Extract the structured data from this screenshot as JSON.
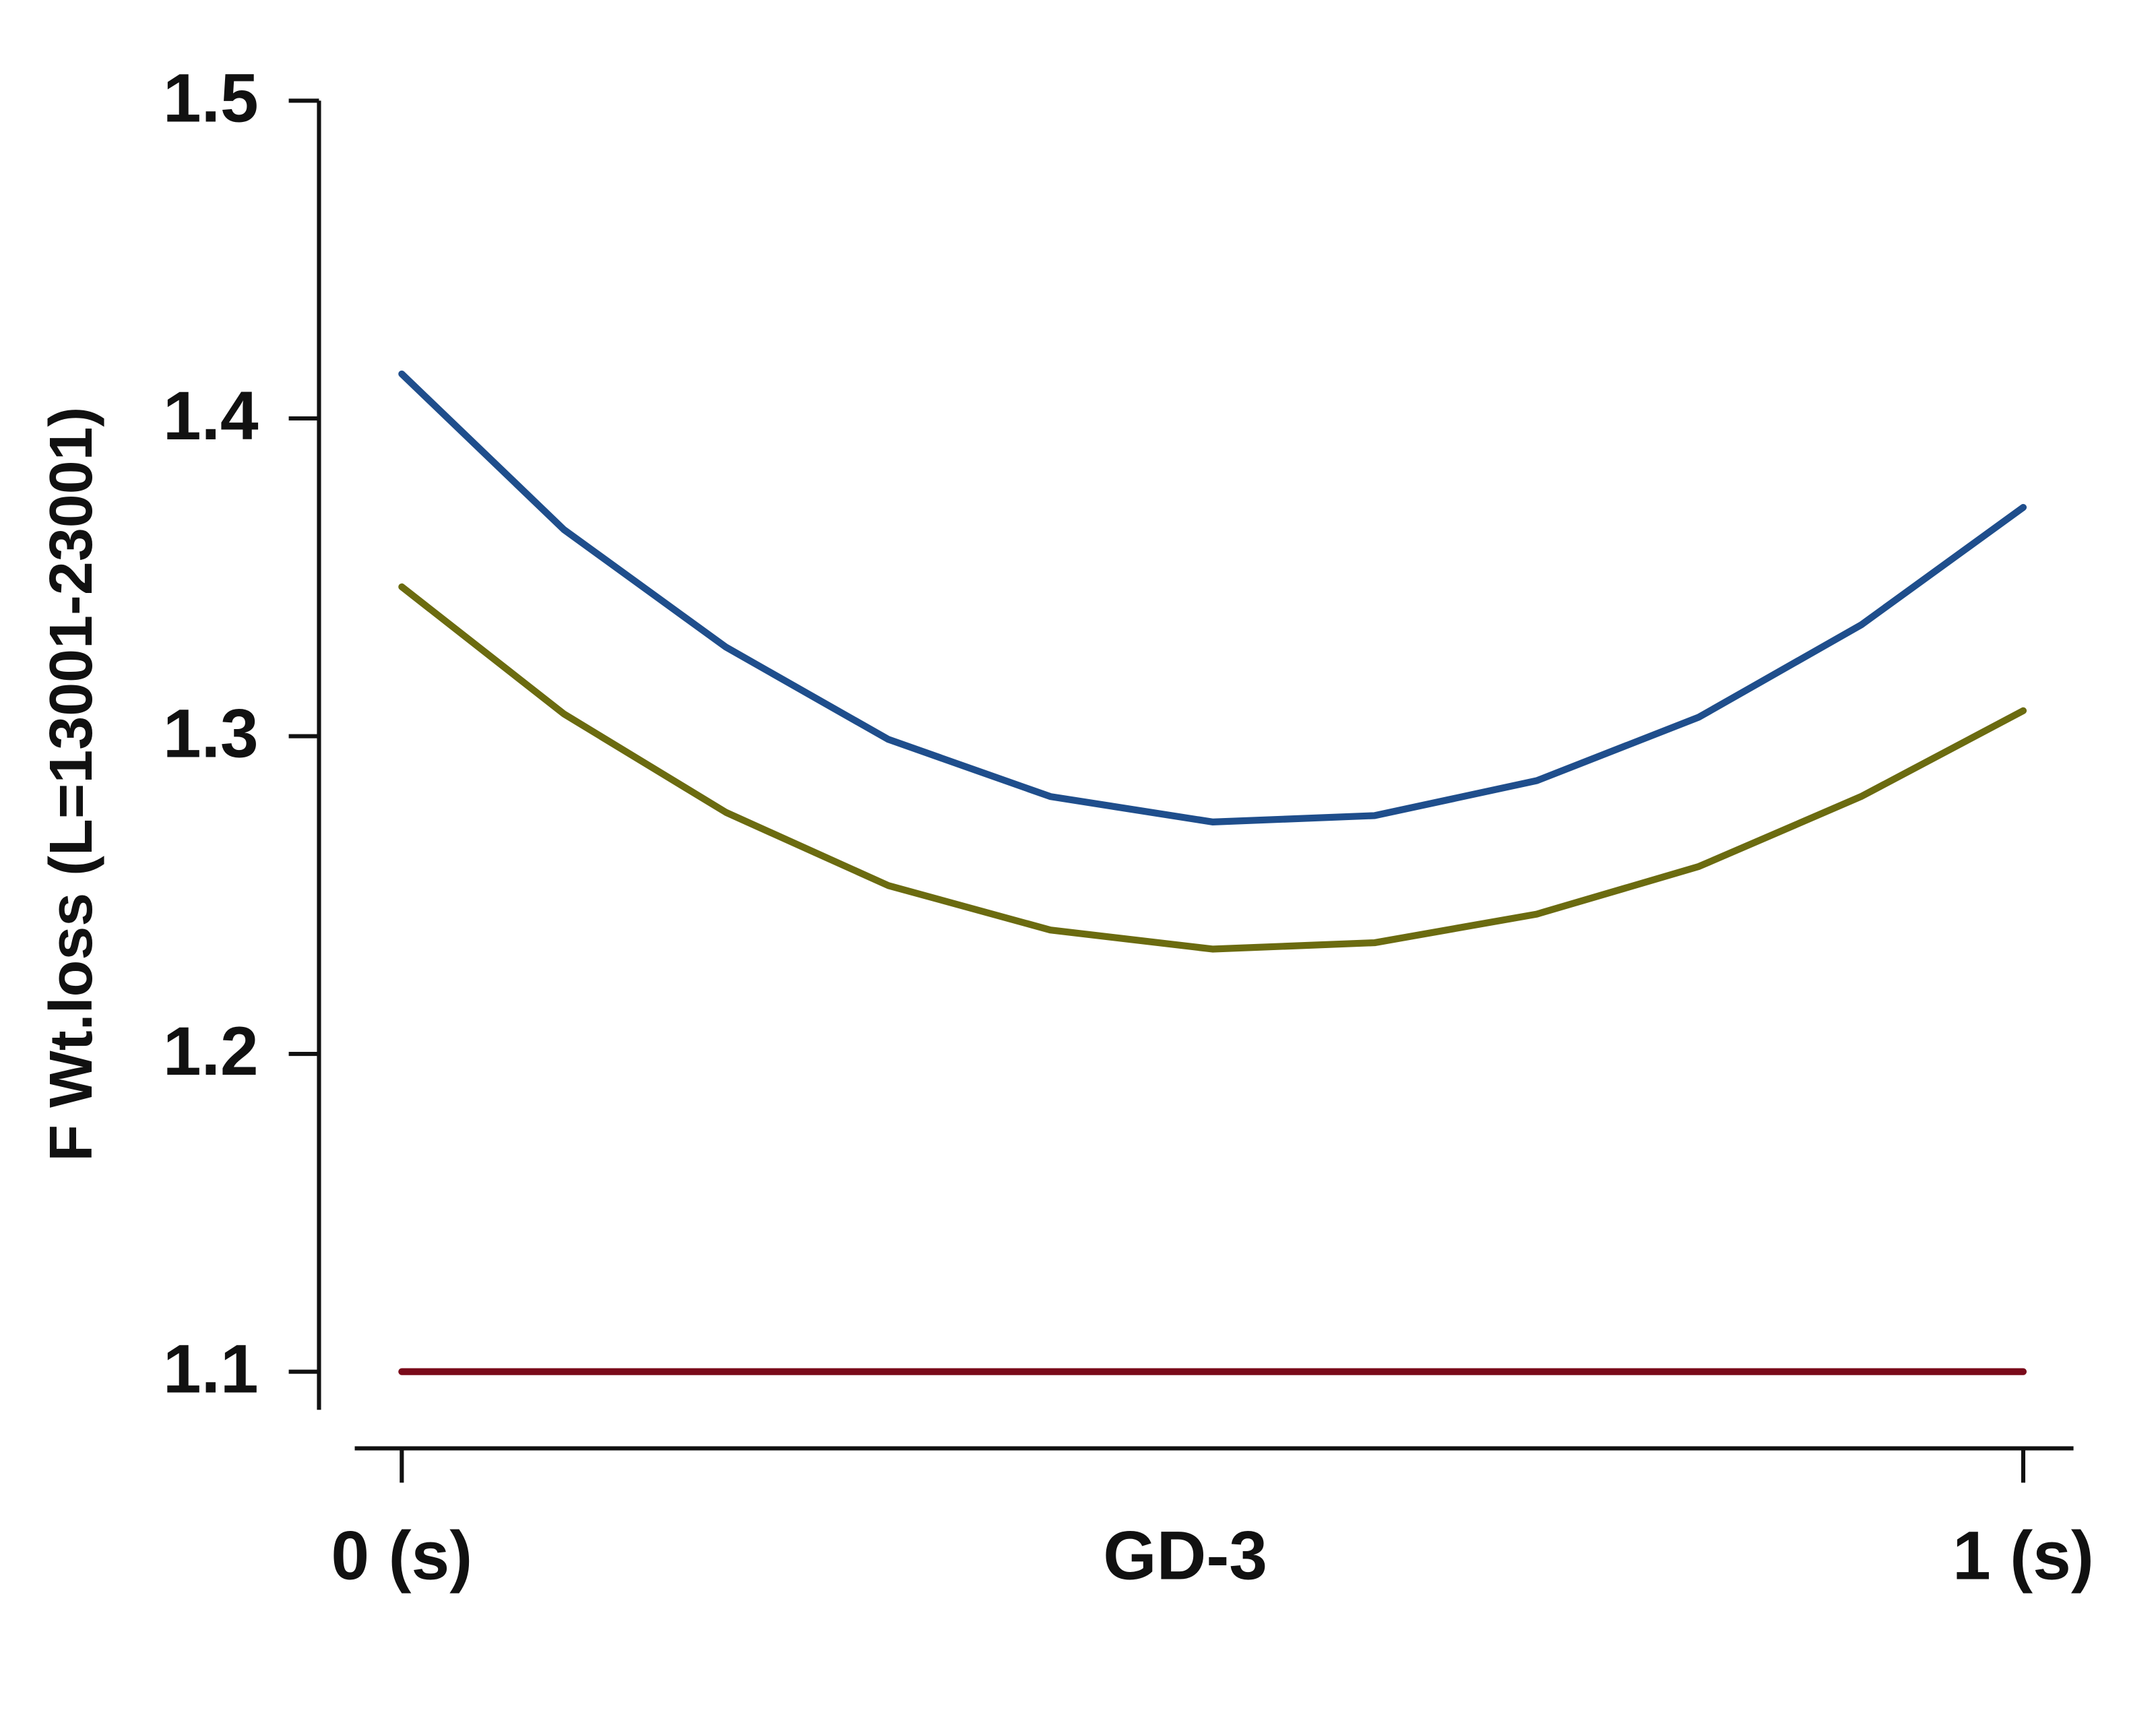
{
  "chart_data": {
    "type": "line",
    "x_label": "GD-3",
    "y_label": "F Wt.loss (L=13001-23001)",
    "x": [
      0,
      0.1,
      0.2,
      0.3,
      0.4,
      0.5,
      0.6,
      0.7,
      0.8,
      0.9,
      1
    ],
    "series": [
      {
        "color": "#1f4e8c",
        "values": [
          1.414,
          1.365,
          1.328,
          1.299,
          1.281,
          1.273,
          1.275,
          1.286,
          1.306,
          1.335,
          1.372
        ]
      },
      {
        "color": "#6b6b10",
        "values": [
          1.347,
          1.307,
          1.276,
          1.253,
          1.239,
          1.233,
          1.235,
          1.244,
          1.259,
          1.281,
          1.308
        ]
      },
      {
        "color": "#7a0a1a",
        "values": [
          1.1,
          1.1,
          1.1,
          1.1,
          1.1,
          1.1,
          1.1,
          1.1,
          1.1,
          1.1,
          1.1
        ]
      }
    ],
    "xlim": [
      -0.029,
      1.031
    ],
    "ylim": [
      1.088,
      1.5
    ],
    "xticks": [
      {
        "value": 0,
        "label": "0 (s)"
      },
      {
        "value": 1,
        "label": "1 (s)"
      }
    ],
    "yticks": [
      1.1,
      1.2,
      1.3,
      1.4,
      1.5
    ],
    "grid": false
  }
}
